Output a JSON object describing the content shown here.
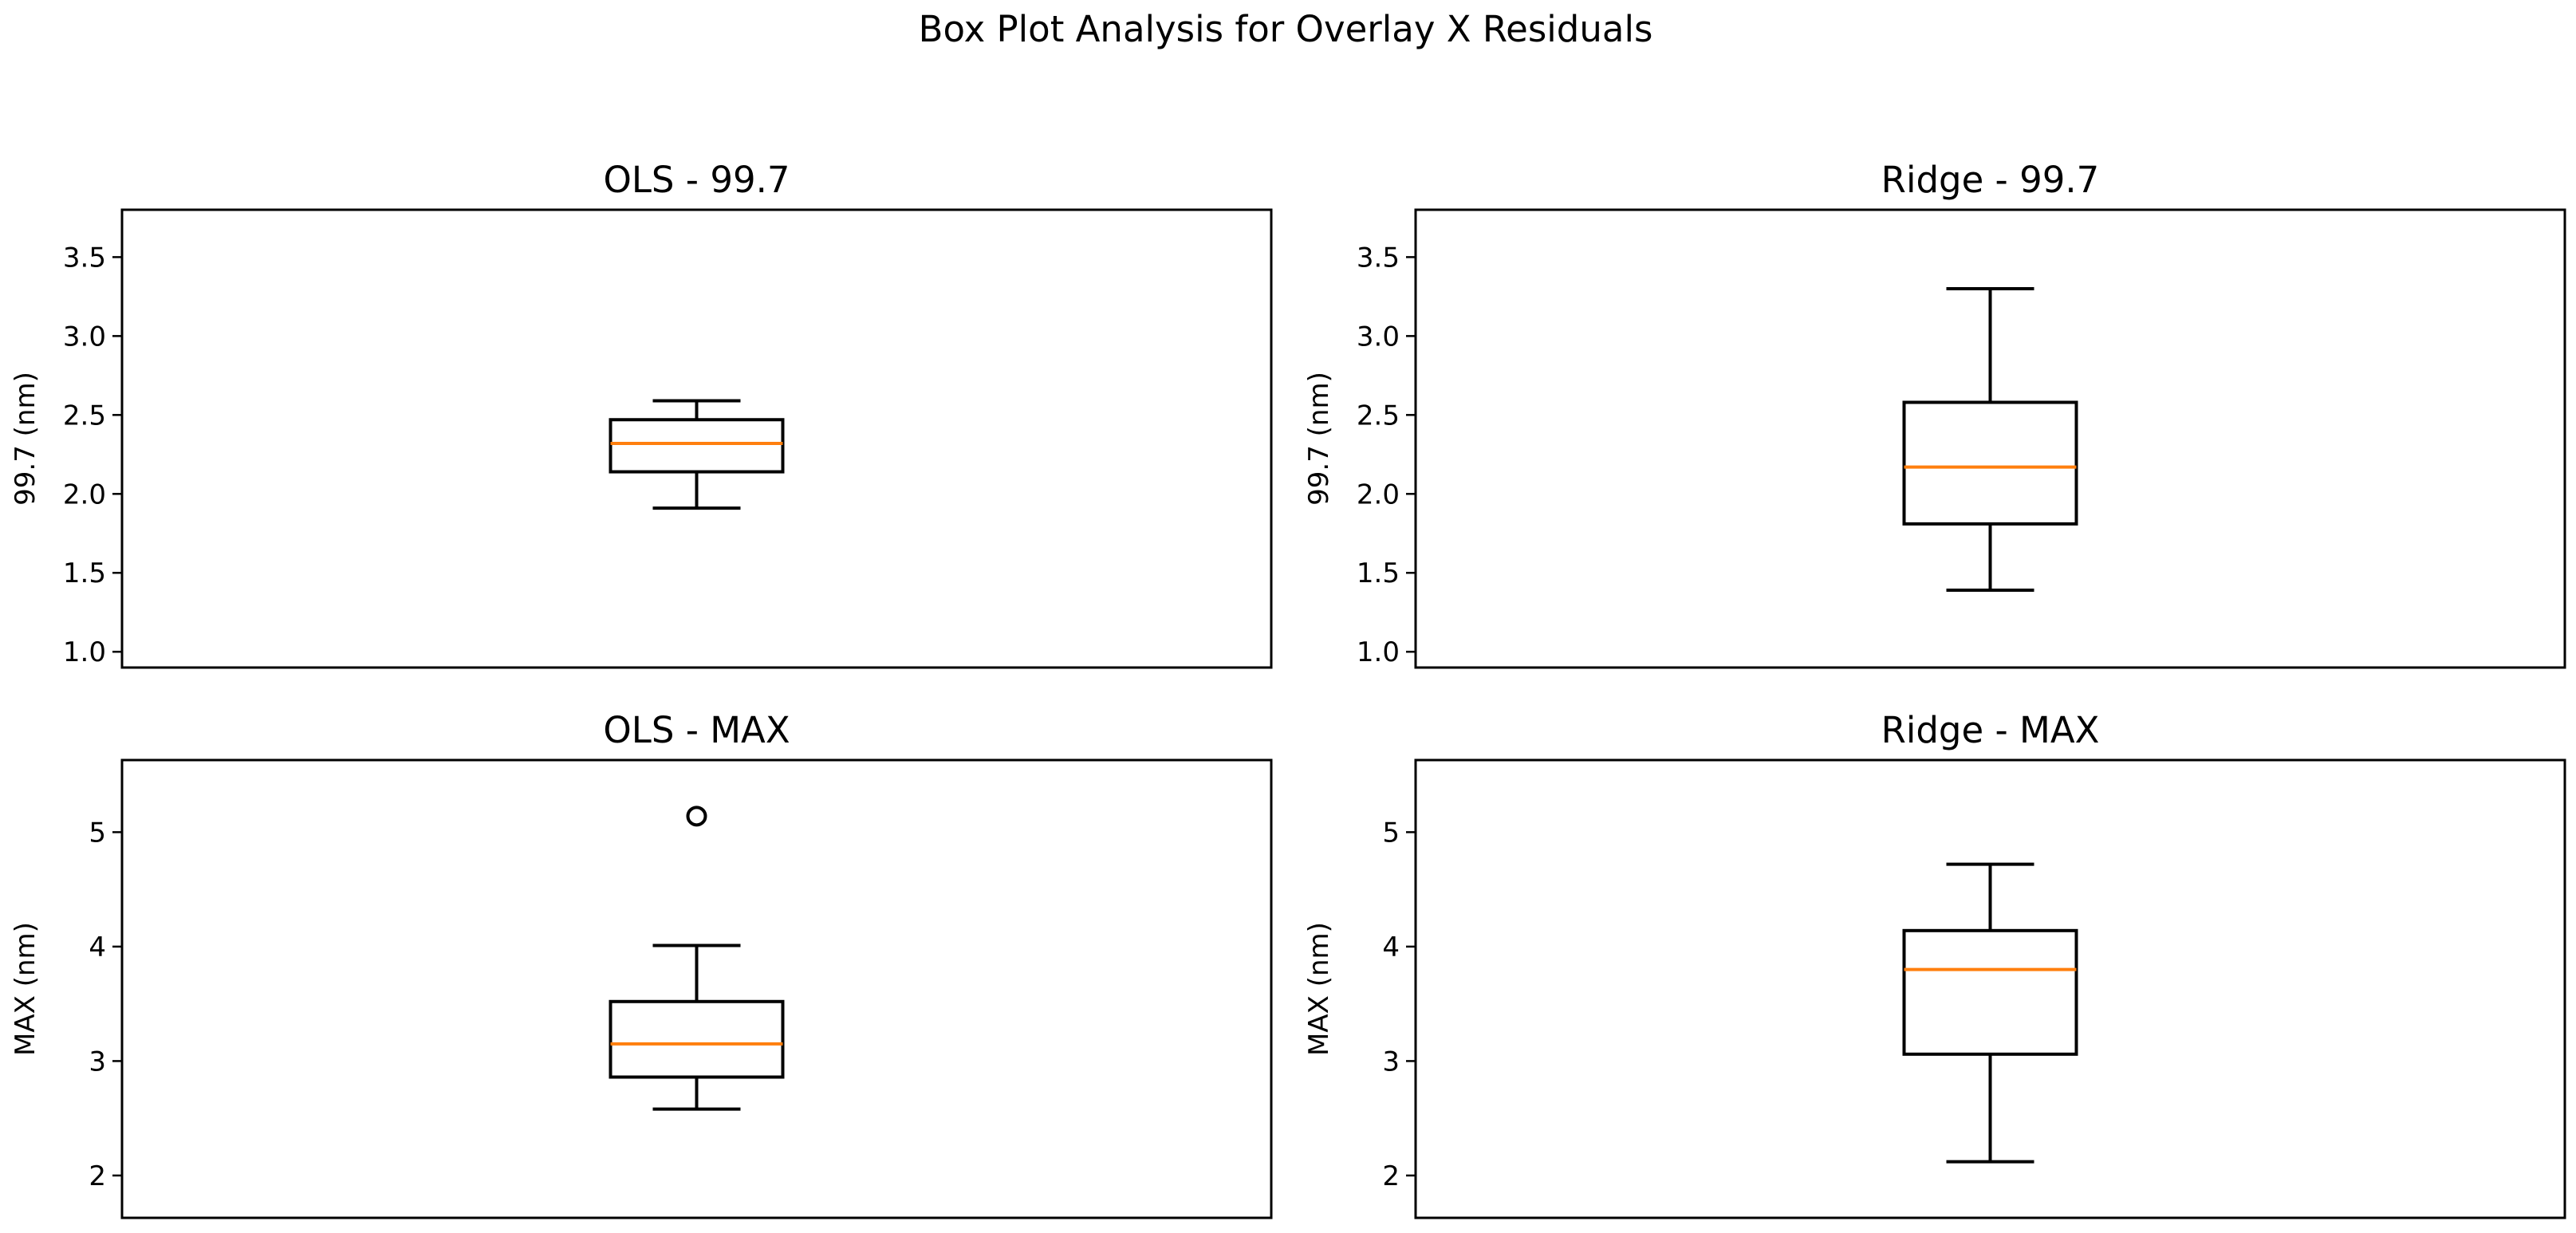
{
  "chart_data": {
    "type": "boxplot",
    "title": "Box Plot Analysis for Overlay X Residuals",
    "colors": {
      "box": "#000000",
      "median": "#ff7f0e",
      "background": "#ffffff"
    },
    "panels": [
      {
        "title": "OLS - 99.7",
        "ylabel": "99.7 (nm)",
        "ylim": [
          0.9,
          3.8
        ],
        "yticks": [
          1.0,
          1.5,
          2.0,
          2.5,
          3.0,
          3.5
        ],
        "ytick_labels": [
          "1.0",
          "1.5",
          "2.0",
          "2.5",
          "3.0",
          "3.5"
        ],
        "box": {
          "whisker_low": 1.91,
          "q1": 2.14,
          "median": 2.32,
          "q3": 2.47,
          "whisker_high": 2.59
        },
        "outliers": []
      },
      {
        "title": "Ridge - 99.7",
        "ylabel": "99.7 (nm)",
        "ylim": [
          0.9,
          3.8
        ],
        "yticks": [
          1.0,
          1.5,
          2.0,
          2.5,
          3.0,
          3.5
        ],
        "ytick_labels": [
          "1.0",
          "1.5",
          "2.0",
          "2.5",
          "3.0",
          "3.5"
        ],
        "box": {
          "whisker_low": 1.39,
          "q1": 1.81,
          "median": 2.17,
          "q3": 2.58,
          "whisker_high": 3.3
        },
        "outliers": []
      },
      {
        "title": "OLS - MAX",
        "ylabel": "MAX (nm)",
        "ylim": [
          1.63,
          5.63
        ],
        "yticks": [
          2,
          3,
          4,
          5
        ],
        "ytick_labels": [
          "2",
          "3",
          "4",
          "5"
        ],
        "box": {
          "whisker_low": 2.58,
          "q1": 2.86,
          "median": 3.15,
          "q3": 3.52,
          "whisker_high": 4.01
        },
        "outliers": [
          5.14
        ]
      },
      {
        "title": "Ridge - MAX",
        "ylabel": "MAX (nm)",
        "ylim": [
          1.63,
          5.63
        ],
        "yticks": [
          2,
          3,
          4,
          5
        ],
        "ytick_labels": [
          "2",
          "3",
          "4",
          "5"
        ],
        "box": {
          "whisker_low": 2.12,
          "q1": 3.06,
          "median": 3.8,
          "q3": 4.14,
          "whisker_high": 4.72
        },
        "outliers": []
      }
    ]
  }
}
